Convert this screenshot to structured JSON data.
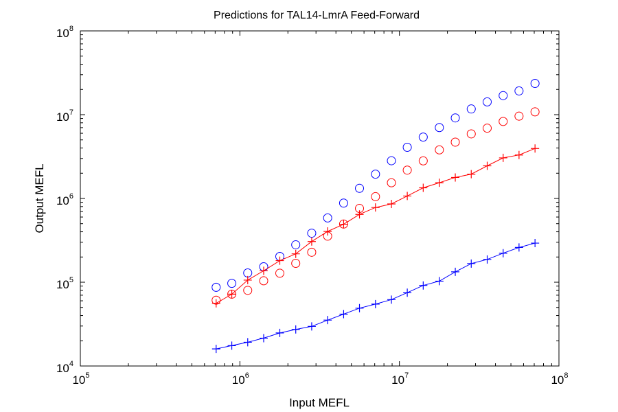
{
  "chart_data": {
    "type": "scatter",
    "title": "Predictions for TAL14-LmrA Feed-Forward",
    "xlabel": "Input MEFL",
    "ylabel": "Output MEFL",
    "xscale": "log",
    "yscale": "log",
    "xlim": [
      100000,
      100000000
    ],
    "ylim": [
      10000,
      100000000
    ],
    "x_ticks": [
      {
        "base": "10",
        "exp": "5",
        "value": 100000
      },
      {
        "base": "10",
        "exp": "6",
        "value": 1000000
      },
      {
        "base": "10",
        "exp": "7",
        "value": 10000000
      },
      {
        "base": "10",
        "exp": "8",
        "value": 100000000
      }
    ],
    "y_ticks": [
      {
        "base": "10",
        "exp": "4",
        "value": 10000
      },
      {
        "base": "10",
        "exp": "5",
        "value": 100000
      },
      {
        "base": "10",
        "exp": "6",
        "value": 1000000
      },
      {
        "base": "10",
        "exp": "7",
        "value": 10000000
      },
      {
        "base": "10",
        "exp": "8",
        "value": 100000000
      }
    ],
    "grid": false,
    "legend": "none",
    "x": [
      710000,
      890000,
      1120000,
      1410000,
      1780000,
      2240000,
      2820000,
      3550000,
      4470000,
      5620000,
      7080000,
      8910000,
      11200000,
      14100000,
      17800000,
      22400000,
      28200000,
      35500000,
      44700000,
      56200000,
      70800000
    ],
    "series": [
      {
        "color": "#0000ff",
        "marker": "circle",
        "line": false,
        "values": [
          87000,
          97000,
          129000,
          153000,
          203000,
          280000,
          385000,
          585000,
          880000,
          1320000,
          1950000,
          2820000,
          4080000,
          5400000,
          7020000,
          9150000,
          11700000,
          14200000,
          16900000,
          19200000,
          23600000
        ]
      },
      {
        "color": "#ff0000",
        "marker": "circle",
        "line": false,
        "values": [
          61000,
          72000,
          80000,
          104000,
          128000,
          168000,
          228000,
          355000,
          495000,
          760000,
          1050000,
          1540000,
          2180000,
          2810000,
          3800000,
          4700000,
          5900000,
          6900000,
          8300000,
          9600000,
          10800000
        ]
      },
      {
        "color": "#ff0000",
        "marker": "plus",
        "line": true,
        "values": [
          56000,
          72000,
          106000,
          137000,
          181000,
          218000,
          306000,
          404000,
          492000,
          645000,
          780000,
          860000,
          1070000,
          1340000,
          1540000,
          1780000,
          1950000,
          2450000,
          3050000,
          3300000,
          3950000
        ]
      },
      {
        "color": "#0000ff",
        "marker": "plus",
        "line": true,
        "values": [
          16000,
          17500,
          19200,
          21500,
          24800,
          27300,
          29700,
          35300,
          41600,
          49000,
          54800,
          62000,
          75000,
          91500,
          103000,
          133000,
          167000,
          187000,
          222000,
          260000,
          293000
        ]
      }
    ]
  }
}
